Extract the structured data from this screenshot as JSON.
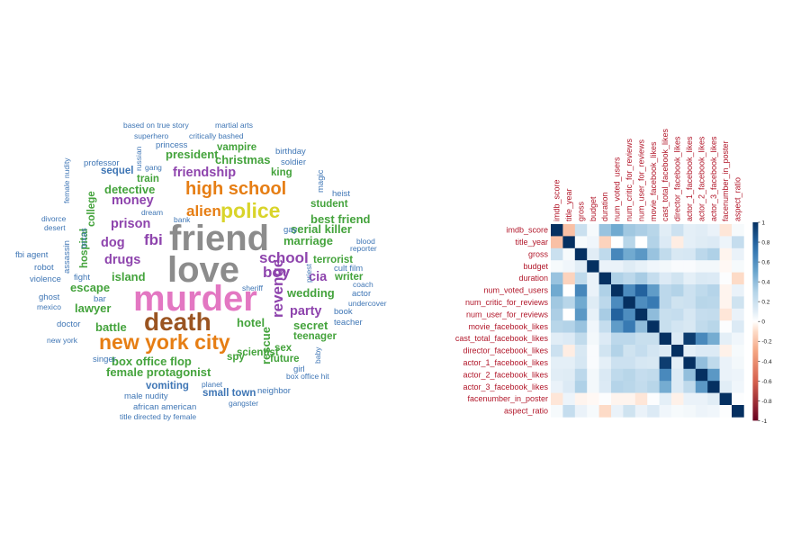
{
  "chart_data": [
    {
      "type": "wordcloud",
      "title": "",
      "words": [
        {
          "text": "friend",
          "color": "#8c8c8c",
          "rank": 1
        },
        {
          "text": "love",
          "color": "#8c8c8c",
          "rank": 1
        },
        {
          "text": "murder",
          "color": "#e377c2",
          "rank": 1
        },
        {
          "text": "death",
          "color": "#9a5421",
          "rank": 2
        },
        {
          "text": "police",
          "color": "#d9d42a",
          "rank": 3
        },
        {
          "text": "new york city",
          "color": "#e67e14",
          "rank": 3
        },
        {
          "text": "high school",
          "color": "#e67e14",
          "rank": 4
        },
        {
          "text": "alien",
          "color": "#e67e14",
          "rank": 5
        },
        {
          "text": "fbi",
          "color": "#8e44ad",
          "rank": 5
        },
        {
          "text": "school",
          "color": "#8e44ad",
          "rank": 5
        },
        {
          "text": "boy",
          "color": "#8e44ad",
          "rank": 5
        },
        {
          "text": "revenge",
          "color": "#8e44ad",
          "rank": 5
        },
        {
          "text": "prison",
          "color": "#8e44ad",
          "rank": 6
        },
        {
          "text": "drugs",
          "color": "#8e44ad",
          "rank": 6
        },
        {
          "text": "friendship",
          "color": "#8e44ad",
          "rank": 6
        },
        {
          "text": "money",
          "color": "#8e44ad",
          "rank": 6
        },
        {
          "text": "dog",
          "color": "#8e44ad",
          "rank": 6
        },
        {
          "text": "cia",
          "color": "#8e44ad",
          "rank": 6
        },
        {
          "text": "party",
          "color": "#8e44ad",
          "rank": 6
        },
        {
          "text": "detective",
          "color": "#44a33c",
          "rank": 7
        },
        {
          "text": "christmas",
          "color": "#44a33c",
          "rank": 7
        },
        {
          "text": "president",
          "color": "#44a33c",
          "rank": 7
        },
        {
          "text": "island",
          "color": "#44a33c",
          "rank": 7
        },
        {
          "text": "marriage",
          "color": "#44a33c",
          "rank": 7
        },
        {
          "text": "escape",
          "color": "#44a33c",
          "rank": 7
        },
        {
          "text": "lawyer",
          "color": "#44a33c",
          "rank": 7
        },
        {
          "text": "battle",
          "color": "#44a33c",
          "rank": 7
        },
        {
          "text": "hotel",
          "color": "#44a33c",
          "rank": 7
        },
        {
          "text": "rescue",
          "color": "#44a33c",
          "rank": 7
        },
        {
          "text": "secret",
          "color": "#44a33c",
          "rank": 7
        },
        {
          "text": "wedding",
          "color": "#44a33c",
          "rank": 7
        },
        {
          "text": "box office flop",
          "color": "#44a33c",
          "rank": 7
        },
        {
          "text": "female protagonist",
          "color": "#44a33c",
          "rank": 7
        },
        {
          "text": "best friend",
          "color": "#44a33c",
          "rank": 7
        },
        {
          "text": "serial killer",
          "color": "#44a33c",
          "rank": 7
        },
        {
          "text": "terrorist",
          "color": "#44a33c",
          "rank": 8
        },
        {
          "text": "king",
          "color": "#44a33c",
          "rank": 8
        },
        {
          "text": "train",
          "color": "#44a33c",
          "rank": 8
        },
        {
          "text": "teenager",
          "color": "#44a33c",
          "rank": 8
        },
        {
          "text": "sex",
          "color": "#44a33c",
          "rank": 8
        },
        {
          "text": "future",
          "color": "#44a33c",
          "rank": 8
        },
        {
          "text": "writer",
          "color": "#44a33c",
          "rank": 8
        },
        {
          "text": "student",
          "color": "#44a33c",
          "rank": 8
        },
        {
          "text": "hospital",
          "color": "#44a33c",
          "rank": 8
        },
        {
          "text": "college",
          "color": "#44a33c",
          "rank": 8
        },
        {
          "text": "scientist",
          "color": "#44a33c",
          "rank": 8
        },
        {
          "text": "vampire",
          "color": "#44a33c",
          "rank": 8
        },
        {
          "text": "spy",
          "color": "#44a33c",
          "rank": 8
        },
        {
          "text": "small town",
          "color": "#3f76b5",
          "rank": 8
        },
        {
          "text": "vomiting",
          "color": "#3f76b5",
          "rank": 8
        },
        {
          "text": "sequel",
          "color": "#3f76b5",
          "rank": 8
        },
        {
          "text": "princess",
          "color": "#3f76b5",
          "rank": 9
        },
        {
          "text": "professor",
          "color": "#3f76b5",
          "rank": 9
        },
        {
          "text": "gay",
          "color": "#3f76b5",
          "rank": 9
        },
        {
          "text": "cult film",
          "color": "#3f76b5",
          "rank": 9
        },
        {
          "text": "heist",
          "color": "#3f76b5",
          "rank": 9
        },
        {
          "text": "soldier",
          "color": "#3f76b5",
          "rank": 9
        },
        {
          "text": "birthday",
          "color": "#3f76b5",
          "rank": 9
        },
        {
          "text": "magic",
          "color": "#3f76b5",
          "rank": 9
        },
        {
          "text": "fight",
          "color": "#3f76b5",
          "rank": 9
        },
        {
          "text": "texas",
          "color": "#3f76b5",
          "rank": 9
        },
        {
          "text": "assassin",
          "color": "#3f76b5",
          "rank": 9
        },
        {
          "text": "violence",
          "color": "#3f76b5",
          "rank": 9
        },
        {
          "text": "fbi agent",
          "color": "#3f76b5",
          "rank": 9
        },
        {
          "text": "robot",
          "color": "#3f76b5",
          "rank": 9
        },
        {
          "text": "ghost",
          "color": "#3f76b5",
          "rank": 9
        },
        {
          "text": "bar",
          "color": "#3f76b5",
          "rank": 9
        },
        {
          "text": "doctor",
          "color": "#3f76b5",
          "rank": 9
        },
        {
          "text": "singer",
          "color": "#3f76b5",
          "rank": 9
        },
        {
          "text": "male nudity",
          "color": "#3f76b5",
          "rank": 9
        },
        {
          "text": "african american",
          "color": "#3f76b5",
          "rank": 9
        },
        {
          "text": "girl",
          "color": "#3f76b5",
          "rank": 9
        },
        {
          "text": "book",
          "color": "#3f76b5",
          "rank": 9
        },
        {
          "text": "teacher",
          "color": "#3f76b5",
          "rank": 9
        },
        {
          "text": "actor",
          "color": "#3f76b5",
          "rank": 9
        },
        {
          "text": "neighbor",
          "color": "#3f76b5",
          "rank": 9
        },
        {
          "text": "dream",
          "color": "#3f76b5",
          "rank": 10
        },
        {
          "text": "based on true story",
          "color": "#3f76b5",
          "rank": 10
        },
        {
          "text": "martial arts",
          "color": "#3f76b5",
          "rank": 10
        },
        {
          "text": "superhero",
          "color": "#3f76b5",
          "rank": 10
        },
        {
          "text": "critically bashed",
          "color": "#3f76b5",
          "rank": 10
        },
        {
          "text": "russian",
          "color": "#3f76b5",
          "rank": 10
        },
        {
          "text": "gang",
          "color": "#3f76b5",
          "rank": 10
        },
        {
          "text": "female nudity",
          "color": "#3f76b5",
          "rank": 10
        },
        {
          "text": "divorce",
          "color": "#3f76b5",
          "rank": 10
        },
        {
          "text": "desert",
          "color": "#3f76b5",
          "rank": 10
        },
        {
          "text": "bank",
          "color": "#3f76b5",
          "rank": 10
        },
        {
          "text": "blood",
          "color": "#3f76b5",
          "rank": 10
        },
        {
          "text": "reporter",
          "color": "#3f76b5",
          "rank": 10
        },
        {
          "text": "priest",
          "color": "#3f76b5",
          "rank": 10
        },
        {
          "text": "coach",
          "color": "#3f76b5",
          "rank": 10
        },
        {
          "text": "undercover",
          "color": "#3f76b5",
          "rank": 10
        },
        {
          "text": "mexico",
          "color": "#3f76b5",
          "rank": 10
        },
        {
          "text": "new york",
          "color": "#3f76b5",
          "rank": 10
        },
        {
          "text": "sheriff",
          "color": "#3f76b5",
          "rank": 10
        },
        {
          "text": "baby",
          "color": "#3f76b5",
          "rank": 10
        },
        {
          "text": "box office hit",
          "color": "#3f76b5",
          "rank": 10
        },
        {
          "text": "planet",
          "color": "#3f76b5",
          "rank": 10
        },
        {
          "text": "gangster",
          "color": "#3f76b5",
          "rank": 10
        },
        {
          "text": "title directed by female",
          "color": "#3f76b5",
          "rank": 10
        }
      ]
    },
    {
      "type": "heatmap",
      "title": "",
      "variables": [
        "imdb_score",
        "title_year",
        "gross",
        "budget",
        "duration",
        "num_voted_users",
        "num_critic_for_reviews",
        "num_user_for_reviews",
        "movie_facebook_likes",
        "cast_total_facebook_likes",
        "director_facebook_likes",
        "actor_1_facebook_likes",
        "actor_2_facebook_likes",
        "actor_3_facebook_likes",
        "facenumber_in_poster",
        "aspect_ratio"
      ],
      "matrix": [
        [
          1.0,
          -0.2,
          0.2,
          0.03,
          0.37,
          0.48,
          0.35,
          0.32,
          0.28,
          0.1,
          0.19,
          0.09,
          0.1,
          0.07,
          -0.07,
          0.03
        ],
        [
          -0.2,
          1.0,
          0.03,
          0.05,
          -0.13,
          0.0,
          0.28,
          0.0,
          0.3,
          0.12,
          -0.05,
          0.09,
          0.11,
          0.12,
          0.06,
          0.22
        ],
        [
          0.2,
          0.03,
          1.0,
          0.1,
          0.25,
          0.64,
          0.48,
          0.56,
          0.37,
          0.24,
          0.14,
          0.15,
          0.26,
          0.31,
          -0.03,
          0.07
        ],
        [
          0.03,
          0.05,
          0.1,
          1.0,
          0.07,
          0.07,
          0.11,
          0.08,
          0.05,
          0.04,
          0.02,
          0.02,
          0.04,
          0.04,
          -0.02,
          0.03
        ],
        [
          0.37,
          -0.13,
          0.25,
          0.07,
          1.0,
          0.31,
          0.26,
          0.33,
          0.22,
          0.12,
          0.17,
          0.09,
          0.13,
          0.12,
          0.01,
          -0.1
        ],
        [
          0.48,
          0.0,
          0.64,
          0.07,
          0.31,
          1.0,
          0.62,
          0.8,
          0.54,
          0.26,
          0.3,
          0.19,
          0.25,
          0.29,
          -0.03,
          0.07
        ],
        [
          0.35,
          0.28,
          0.48,
          0.11,
          0.26,
          0.62,
          1.0,
          0.61,
          0.7,
          0.26,
          0.18,
          0.19,
          0.28,
          0.27,
          -0.03,
          0.18
        ],
        [
          0.32,
          0.0,
          0.56,
          0.08,
          0.33,
          0.8,
          0.61,
          1.0,
          0.4,
          0.21,
          0.22,
          0.15,
          0.22,
          0.23,
          -0.07,
          0.07
        ],
        [
          0.28,
          0.3,
          0.37,
          0.05,
          0.22,
          0.54,
          0.7,
          0.4,
          1.0,
          0.21,
          0.16,
          0.14,
          0.24,
          0.28,
          0.01,
          0.12
        ],
        [
          0.1,
          0.12,
          0.24,
          0.04,
          0.12,
          0.26,
          0.26,
          0.21,
          0.21,
          1.0,
          0.12,
          0.95,
          0.63,
          0.47,
          0.09,
          0.05
        ],
        [
          0.19,
          -0.05,
          0.14,
          0.02,
          0.17,
          0.3,
          0.18,
          0.22,
          0.16,
          0.12,
          1.0,
          0.09,
          0.12,
          0.12,
          -0.04,
          0.03
        ],
        [
          0.09,
          0.09,
          0.15,
          0.02,
          0.09,
          0.19,
          0.19,
          0.15,
          0.14,
          0.95,
          0.09,
          1.0,
          0.39,
          0.25,
          0.07,
          0.04
        ],
        [
          0.1,
          0.11,
          0.26,
          0.04,
          0.13,
          0.25,
          0.28,
          0.22,
          0.24,
          0.63,
          0.12,
          0.39,
          1.0,
          0.56,
          0.07,
          0.06
        ],
        [
          0.07,
          0.12,
          0.31,
          0.04,
          0.12,
          0.29,
          0.27,
          0.23,
          0.28,
          0.47,
          0.12,
          0.25,
          0.56,
          1.0,
          0.1,
          0.05
        ],
        [
          -0.07,
          0.06,
          -0.03,
          -0.02,
          0.01,
          -0.03,
          -0.03,
          -0.07,
          0.01,
          0.09,
          -0.04,
          0.07,
          0.07,
          0.1,
          1.0,
          0.01
        ],
        [
          0.03,
          0.22,
          0.07,
          0.03,
          -0.1,
          0.07,
          0.18,
          0.07,
          0.12,
          0.05,
          0.03,
          0.04,
          0.06,
          0.05,
          0.01,
          1.0
        ]
      ],
      "colorbar_ticks": [
        "1",
        "0.8",
        "0.6",
        "0.4",
        "0.2",
        "0",
        "-0.2",
        "-0.4",
        "-0.6",
        "-0.8",
        "-1"
      ],
      "colors": {
        "positive": "#053061",
        "negative": "#67001f",
        "zero": "#ffffff",
        "label": "#b2182b"
      }
    }
  ]
}
